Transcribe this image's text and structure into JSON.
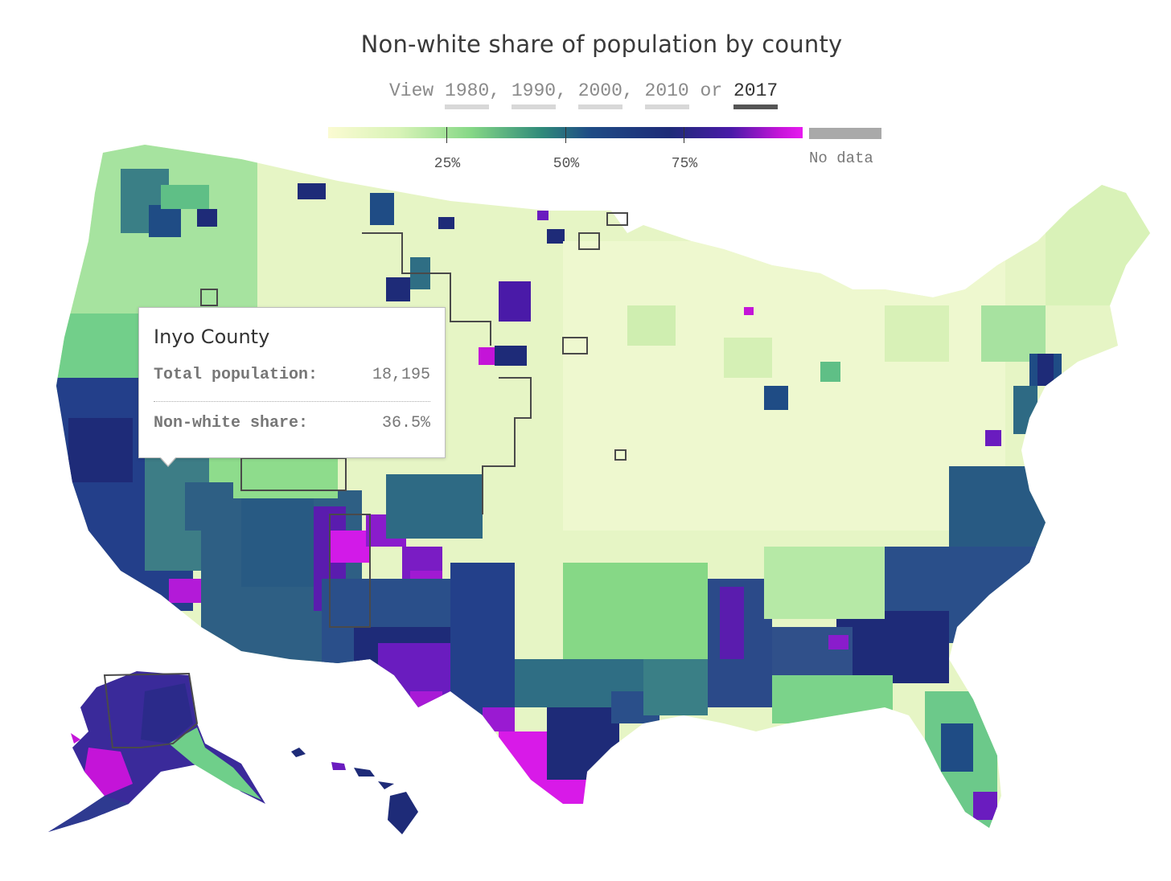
{
  "title": "Non-white share of population by county",
  "year_selector": {
    "prefix": "View",
    "years": [
      "1980",
      "1990",
      "2000",
      "2010",
      "2017"
    ],
    "connector": "or",
    "selected": "2017"
  },
  "legend": {
    "ticks": [
      {
        "label": "25%",
        "value": 25
      },
      {
        "label": "50%",
        "value": 50
      },
      {
        "label": "75%",
        "value": 75
      }
    ],
    "no_data_label": "No data",
    "colors": {
      "low": "#fbfbd2",
      "light_green": "#86d886",
      "teal": "#2f8a7a",
      "navy": "#1e2b78",
      "purple": "#4a1aa8",
      "magenta": "#e81bf0",
      "no_data": "#a9a9a9"
    }
  },
  "tooltip": {
    "county": "Inyo County",
    "population_label": "Total population:",
    "population_value": "18,195",
    "share_label": "Non-white share:",
    "share_value": "36.5%"
  }
}
